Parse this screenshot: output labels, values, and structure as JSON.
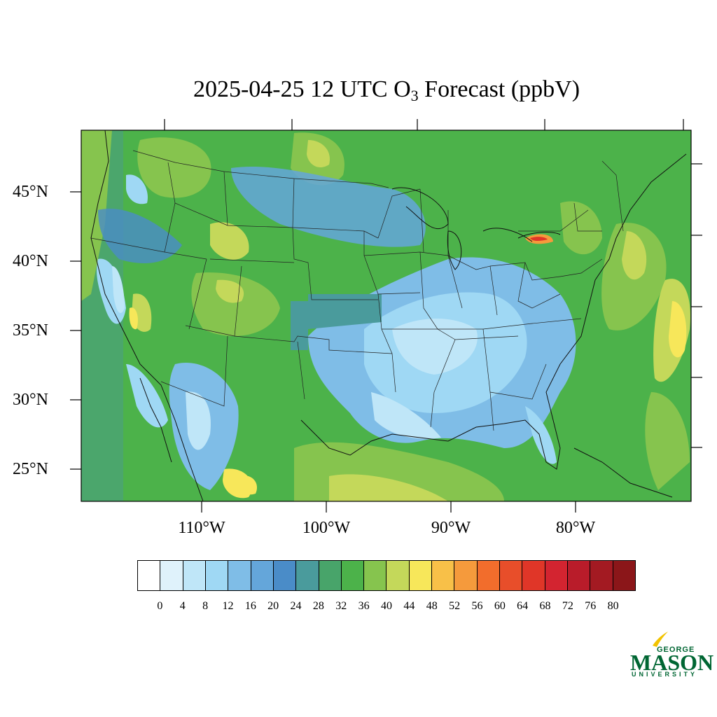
{
  "title": {
    "main": "2025-04-25 12 UTC O",
    "subscript": "3",
    "suffix": " Forecast (ppbV)"
  },
  "lat_labels": [
    "45°N",
    "40°N",
    "35°N",
    "30°N",
    "25°N"
  ],
  "lon_labels": [
    "110°W",
    "100°W",
    "90°W",
    "80°W"
  ],
  "colorbar": {
    "colors": [
      "#ffffff",
      "#dff2fb",
      "#bfe6f8",
      "#9fd8f4",
      "#7fbde7",
      "#64a6da",
      "#4a8cc8",
      "#4a9b9c",
      "#48a46a",
      "#4cb24a",
      "#86c44e",
      "#c4d85a",
      "#f7e75a",
      "#f8c048",
      "#f59a3c",
      "#f26d2c",
      "#e84e2a",
      "#e03628",
      "#d32430",
      "#b91c2a",
      "#a31a22",
      "#8b1619"
    ],
    "tick_labels": [
      "0",
      "4",
      "8",
      "12",
      "16",
      "20",
      "24",
      "28",
      "32",
      "36",
      "40",
      "44",
      "48",
      "52",
      "56",
      "60",
      "64",
      "68",
      "72",
      "76",
      "80"
    ]
  },
  "logo": {
    "george": "GEORGE",
    "mason": "MASON",
    "university": "UNIVERSITY",
    "color": "#006633",
    "accent": "#f2c300"
  }
}
